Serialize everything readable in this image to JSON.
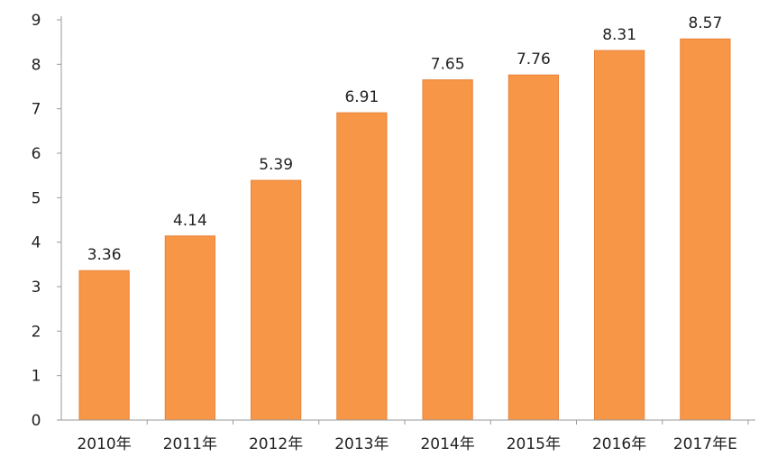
{
  "chart_data": {
    "type": "bar",
    "title": "",
    "xlabel": "",
    "ylabel": "",
    "categories": [
      "2010年",
      "2011年",
      "2012年",
      "2013年",
      "2014年",
      "2015年",
      "2016年",
      "2017年E"
    ],
    "values": [
      3.36,
      4.14,
      5.39,
      6.91,
      7.65,
      7.76,
      8.31,
      8.57
    ],
    "data_labels": [
      "3.36",
      "4.14",
      "5.39",
      "6.91",
      "7.65",
      "7.76",
      "8.31",
      "8.57"
    ],
    "ylim": [
      0,
      9
    ],
    "yticks": [
      "0",
      "1",
      "2",
      "3",
      "4",
      "5",
      "6",
      "7",
      "8",
      "9"
    ],
    "grid": false,
    "legend": "none",
    "bar_color": "#F79646",
    "bar_edge_color": "#E8833A"
  }
}
